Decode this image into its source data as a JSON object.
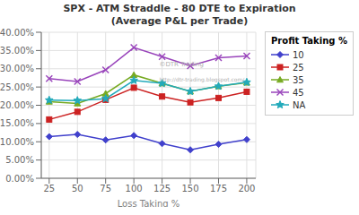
{
  "chart_data": {
    "type": "line",
    "title": "SPX - ATM Straddle - 80 DTE to Expiration",
    "subtitle": "(Average P&L per Trade)",
    "xlabel": "Loss Taking %",
    "legend_title": "Profit Taking %",
    "x": [
      25,
      50,
      75,
      100,
      125,
      150,
      175,
      200
    ],
    "series": [
      {
        "name": "10",
        "color": "#4040cc",
        "marker": "diamond",
        "values": [
          0.114,
          0.12,
          0.105,
          0.117,
          0.095,
          0.078,
          0.093,
          0.106
        ]
      },
      {
        "name": "25",
        "color": "#cc2222",
        "marker": "square",
        "values": [
          0.161,
          0.182,
          0.215,
          0.248,
          0.224,
          0.208,
          0.22,
          0.237
        ]
      },
      {
        "name": "35",
        "color": "#77aa22",
        "marker": "triangle",
        "values": [
          0.21,
          0.205,
          0.232,
          0.283,
          0.26,
          0.238,
          0.252,
          0.262
        ]
      },
      {
        "name": "45",
        "color": "#9944bb",
        "marker": "x",
        "values": [
          0.273,
          0.265,
          0.297,
          0.358,
          0.333,
          0.308,
          0.33,
          0.335
        ]
      },
      {
        "name": "NA",
        "color": "#22aabb",
        "marker": "star",
        "values": [
          0.214,
          0.213,
          0.218,
          0.268,
          0.26,
          0.238,
          0.252,
          0.263
        ]
      }
    ],
    "xlim": [
      18,
      208
    ],
    "xticks": [
      25,
      50,
      75,
      100,
      125,
      150,
      175,
      200
    ],
    "ylim": [
      0.0,
      0.4
    ],
    "yticks": [
      {
        "value": 0.0,
        "label": "0.00%"
      },
      {
        "value": 0.05,
        "label": "5.00%"
      },
      {
        "value": 0.1,
        "label": "10.00%"
      },
      {
        "value": 0.15,
        "label": "15.00%"
      },
      {
        "value": 0.2,
        "label": "20.00%"
      },
      {
        "value": 0.25,
        "label": "25.00%"
      },
      {
        "value": 0.3,
        "label": "30.00%"
      },
      {
        "value": 0.35,
        "label": "35.00%"
      },
      {
        "value": 0.4,
        "label": "40.00%"
      }
    ],
    "grid": true,
    "legend": "right",
    "annotations": [
      "©DTR Trading",
      "http://dtr-trading.blogspot.com/"
    ]
  }
}
